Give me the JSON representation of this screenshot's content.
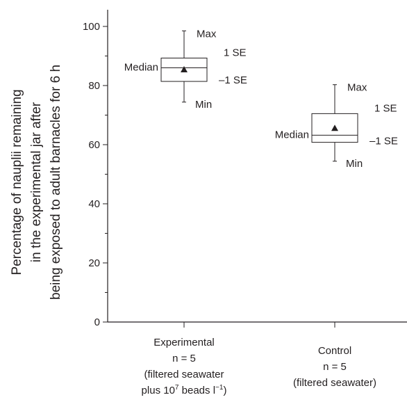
{
  "chart_data": {
    "type": "box",
    "ylabel": [
      "Percentage of nauplii remaining",
      "in the experimental jar after",
      "being exposed to adult barnacles for 6 h"
    ],
    "ylim": [
      0,
      105
    ],
    "yticks": [
      0,
      20,
      40,
      60,
      80,
      100
    ],
    "grid": false,
    "legend": "none",
    "boxes": [
      {
        "label_lines": [
          "Experimental",
          "n = 5",
          "(filtered seawater",
          "plus 10"
        ],
        "label_sup": "7",
        "label_tail": " beads l",
        "label_sup2": "−1",
        "label_end": ")",
        "max": 98.5,
        "plus_1se": 89.3,
        "median": 86.0,
        "mean": 85.4,
        "minus_1se": 81.4,
        "min": 74.4,
        "annotations": {
          "max": "Max",
          "plus_se": "1 SE",
          "median": "Median",
          "minus_se": "–1 SE",
          "min": "Min"
        }
      },
      {
        "label_lines": [
          "Control",
          "n = 5",
          "(filtered seawater)"
        ],
        "max": 80.3,
        "plus_1se": 70.5,
        "median": 63.2,
        "mean": 65.6,
        "minus_1se": 60.8,
        "min": 54.4,
        "annotations": {
          "max": "Max",
          "plus_se": "1 SE",
          "median": "Median",
          "minus_se": "–1 SE",
          "min": "Min"
        }
      }
    ]
  }
}
